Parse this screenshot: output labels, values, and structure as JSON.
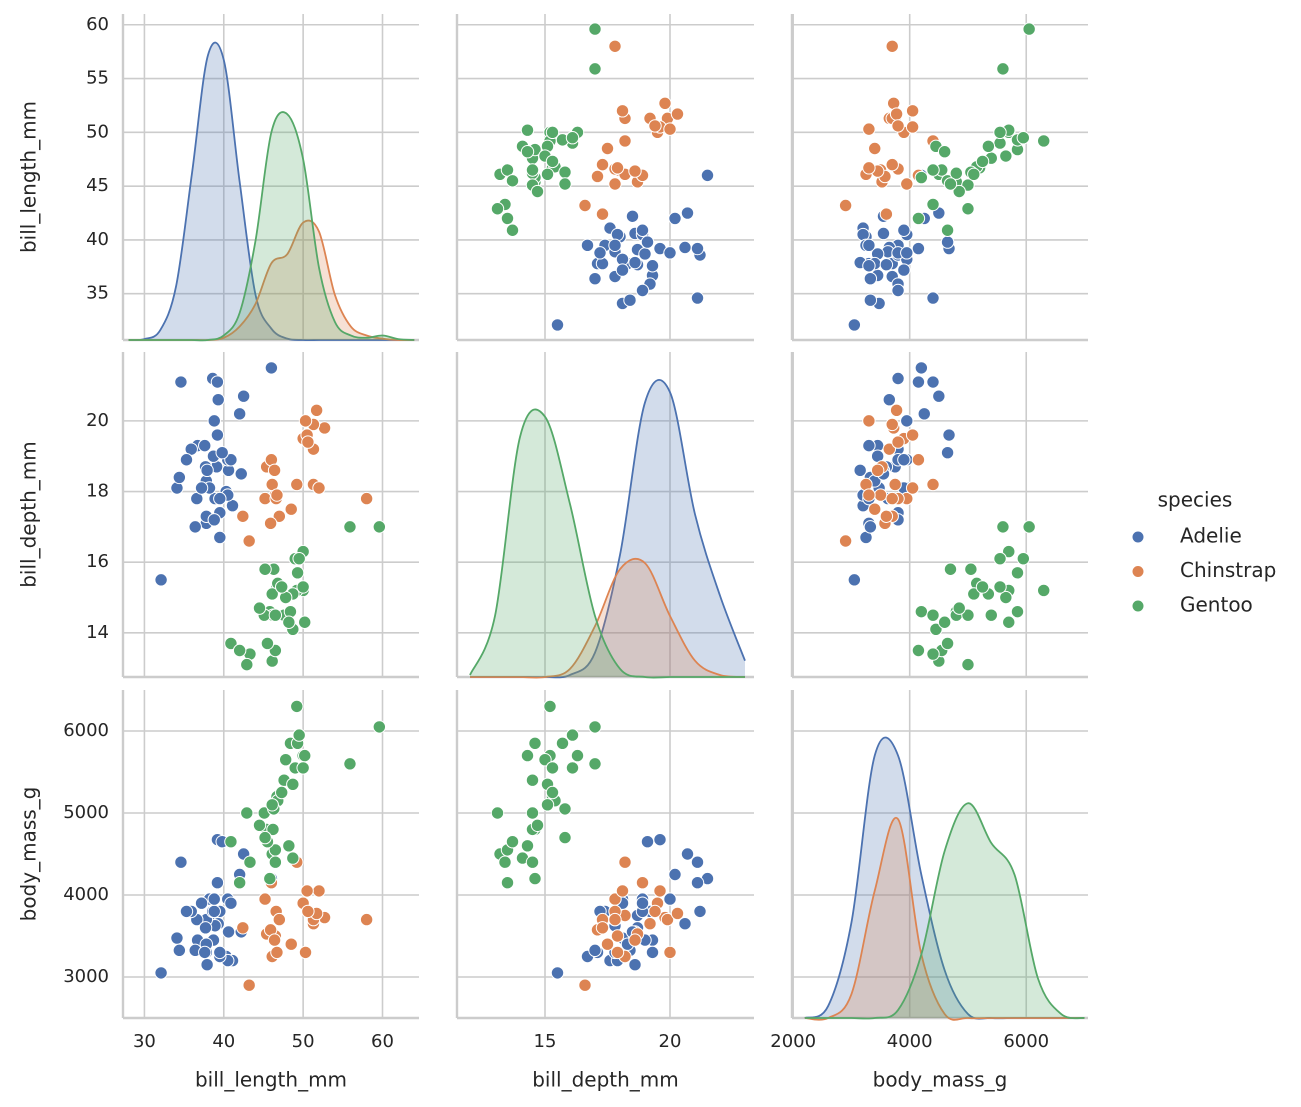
{
  "chart_data": {
    "type": "pairplot",
    "grid": true,
    "legend_title": "species",
    "legend_loc": "right",
    "variables": [
      {
        "name": "bill_length_mm",
        "xlim": [
          27.3,
          64.6
        ],
        "ylim": [
          30.7,
          61.0
        ],
        "xticks": [
          30,
          40,
          50,
          60
        ],
        "yticks": [
          35,
          40,
          45,
          50,
          55,
          60
        ],
        "diag_lim": [
          0,
          0.07
        ],
        "kde_x": [
          28,
          30,
          32,
          34,
          36,
          38,
          40,
          42,
          44,
          46,
          48,
          50,
          52,
          54,
          56,
          58,
          60,
          62,
          64
        ]
      },
      {
        "name": "bill_depth_mm",
        "xlim": [
          11.48,
          23.36
        ],
        "ylim": [
          12.75,
          21.95
        ],
        "xticks": [
          15,
          20
        ],
        "yticks": [
          14,
          16,
          18,
          20
        ],
        "diag_lim": [
          0,
          0.155
        ],
        "kde_x": [
          12,
          13,
          14,
          15,
          16,
          17,
          18,
          19,
          20,
          21,
          22,
          23
        ]
      },
      {
        "name": "body_mass_g",
        "xlim": [
          1980,
          7060
        ],
        "ylim": [
          2500,
          6500
        ],
        "xticks": [
          2000,
          4000,
          6000
        ],
        "yticks": [
          3000,
          4000,
          5000,
          6000
        ],
        "diag_lim": [
          0,
          0.0004
        ],
        "kde_x": [
          2200,
          2600,
          3000,
          3400,
          3800,
          4200,
          4600,
          5000,
          5400,
          5800,
          6200,
          6600,
          7000
        ]
      }
    ],
    "series": [
      {
        "name": "Adelie",
        "color": "#4c72b0",
        "values": [
          [
            39.1,
            39.5,
            40.3,
            36.7,
            39.3,
            38.9,
            39.2,
            34.1,
            42.0,
            37.8,
            37.8,
            41.1,
            38.6,
            34.6,
            36.6,
            38.7,
            42.5,
            34.4,
            46.0,
            37.8,
            37.7,
            35.9,
            38.2,
            38.8,
            35.3,
            40.6,
            40.5,
            37.9,
            40.5,
            39.5,
            37.2,
            39.5,
            40.9,
            36.4,
            39.2,
            38.8,
            42.2,
            37.6,
            39.8,
            32.1
          ],
          [
            18.7,
            17.4,
            18.0,
            19.3,
            20.6,
            17.8,
            19.6,
            18.1,
            20.2,
            17.1,
            17.3,
            17.6,
            21.2,
            21.1,
            17.8,
            19.0,
            20.7,
            18.4,
            21.5,
            18.3,
            18.7,
            19.2,
            18.1,
            17.2,
            18.9,
            18.6,
            17.9,
            18.6,
            18.9,
            16.7,
            18.1,
            17.8,
            18.9,
            17.0,
            21.1,
            20.0,
            18.5,
            19.3,
            19.1,
            15.5
          ],
          [
            3750,
            3800,
            3250,
            3450,
            3650,
            3625,
            4675,
            3475,
            4250,
            3300,
            3700,
            3200,
            3800,
            4400,
            3700,
            3450,
            4500,
            3325,
            4200,
            3400,
            3600,
            3800,
            3950,
            3800,
            3800,
            3550,
            3200,
            3150,
            3950,
            3250,
            3900,
            3300,
            3900,
            3325,
            4150,
            3950,
            3550,
            3300,
            4650,
            3050
          ]
        ],
        "kde": [
          [
            0,
            0.0002,
            0.0022,
            0.012,
            0.037,
            0.063,
            0.062,
            0.035,
            0.01,
            0.0025,
            0.0003,
            0,
            0,
            0,
            0,
            0,
            0,
            0,
            0
          ],
          [
            0,
            0,
            0,
            0,
            0.001,
            0.012,
            0.06,
            0.135,
            0.14,
            0.08,
            0.04,
            0.008
          ],
          [
            0,
            1.5e-05,
            0.00012,
            0.00033,
            0.00033,
            0.00018,
            6e-05,
            5e-06,
            0,
            0,
            0,
            0,
            0
          ]
        ]
      },
      {
        "name": "Chinstrap",
        "color": "#dd8452",
        "values": [
          [
            46.5,
            50.0,
            51.3,
            45.4,
            52.7,
            45.2,
            46.1,
            51.3,
            46.0,
            51.3,
            46.6,
            51.7,
            47.0,
            52.0,
            45.9,
            50.5,
            50.3,
            58.0,
            46.4,
            49.2,
            42.4,
            48.5,
            43.2,
            50.6,
            46.7
          ],
          [
            17.9,
            19.5,
            19.2,
            18.7,
            19.8,
            17.8,
            18.2,
            18.2,
            18.9,
            19.9,
            17.8,
            20.3,
            17.3,
            18.1,
            17.1,
            19.6,
            20.0,
            17.8,
            18.6,
            18.2,
            17.3,
            17.5,
            16.6,
            19.4,
            17.9
          ],
          [
            3500,
            3900,
            3650,
            3525,
            3725,
            3950,
            3250,
            3750,
            4150,
            3700,
            3800,
            3775,
            3700,
            4050,
            3575,
            4050,
            3300,
            3700,
            3450,
            4400,
            3600,
            3400,
            2900,
            3800,
            3300
          ]
        ],
        "kde": [
          [
            0,
            0,
            0,
            0,
            0,
            0,
            0.0005,
            0.003,
            0.008,
            0.017,
            0.019,
            0.026,
            0.024,
            0.01,
            0.003,
            0.001,
            0.0003,
            0,
            0
          ],
          [
            0,
            0,
            0,
            0,
            0.004,
            0.025,
            0.053,
            0.056,
            0.03,
            0.008,
            0.001,
            0
          ],
          [
            0,
            0,
            3e-05,
            0.00016,
            0.00025,
            8e-05,
            5e-06,
            0,
            0,
            0,
            0,
            0,
            0
          ]
        ]
      },
      {
        "name": "Gentoo",
        "color": "#55a868",
        "values": [
          [
            46.1,
            50.0,
            48.7,
            50.0,
            47.6,
            46.5,
            45.4,
            46.7,
            43.3,
            46.8,
            40.9,
            49.0,
            45.5,
            48.4,
            45.8,
            49.3,
            42.0,
            49.2,
            46.2,
            48.7,
            50.2,
            45.1,
            46.5,
            46.3,
            42.9,
            46.1,
            47.8,
            48.2,
            50.0,
            47.3,
            59.6,
            49.5,
            44.5,
            55.9,
            45.2
          ],
          [
            13.2,
            16.3,
            14.1,
            15.2,
            14.5,
            13.5,
            14.6,
            15.3,
            13.4,
            15.4,
            13.7,
            16.1,
            13.7,
            14.6,
            14.6,
            15.7,
            13.5,
            15.2,
            14.5,
            15.1,
            14.3,
            14.5,
            14.5,
            15.8,
            13.1,
            15.1,
            15.0,
            14.3,
            15.3,
            15.3,
            17.0,
            16.1,
            14.7,
            17.0,
            15.8
          ],
          [
            4500,
            5700,
            4450,
            5700,
            5400,
            4550,
            4800,
            5200,
            4400,
            5150,
            4650,
            5550,
            4650,
            5850,
            4200,
            5850,
            4150,
            6300,
            4800,
            5350,
            5700,
            5000,
            4400,
            5050,
            5000,
            5100,
            5650,
            4600,
            5550,
            5250,
            6050,
            5950,
            4850,
            5600,
            4700
          ]
        ],
        "kde": [
          [
            0,
            0,
            0,
            0,
            0,
            0,
            0.001,
            0.006,
            0.022,
            0.046,
            0.05,
            0.04,
            0.016,
            0.004,
            0.001,
            0.0005,
            0.001,
            0.0002,
            0
          ],
          [
            0.001,
            0.03,
            0.118,
            0.128,
            0.085,
            0.03,
            0.004,
            0,
            0,
            0,
            0,
            0
          ],
          [
            0,
            0,
            0,
            0,
            1e-05,
            8e-05,
            0.00021,
            0.00027,
            0.00022,
            0.00018,
            5e-05,
            5e-06,
            0
          ]
        ]
      }
    ]
  }
}
